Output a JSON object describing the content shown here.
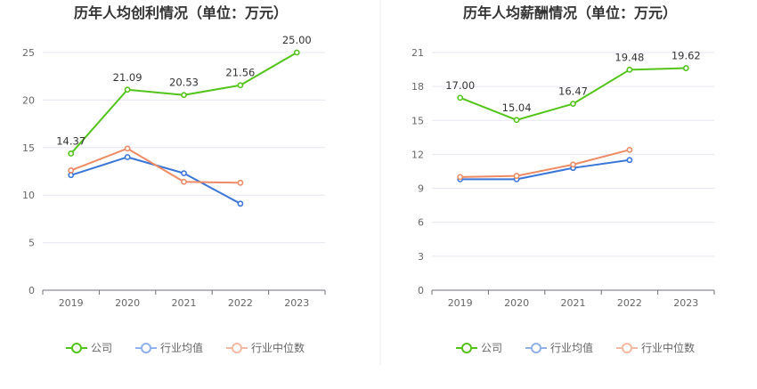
{
  "chart_data": [
    {
      "type": "line",
      "title": "历年人均创利情况（单位：万元）",
      "categories": [
        "2019",
        "2020",
        "2021",
        "2022",
        "2023"
      ],
      "ylim": [
        0,
        25
      ],
      "yticks": [
        0,
        5,
        10,
        15,
        20,
        25
      ],
      "grid": true,
      "legend_position": "bottom",
      "series": [
        {
          "name": "公司",
          "color": "#52c41a",
          "values": [
            14.37,
            21.09,
            20.53,
            21.56,
            25.0
          ],
          "labels": [
            "14.37",
            "21.09",
            "20.53",
            "21.56",
            "25.00"
          ]
        },
        {
          "name": "行业均值",
          "color": "#3a75d8",
          "values": [
            12.1,
            14.0,
            12.3,
            9.1,
            null
          ]
        },
        {
          "name": "行业中位数",
          "color": "#ee8a64",
          "values": [
            12.6,
            14.9,
            11.4,
            11.3,
            null
          ]
        }
      ]
    },
    {
      "type": "line",
      "title": "历年人均薪酬情况（单位：万元）",
      "categories": [
        "2019",
        "2020",
        "2021",
        "2022",
        "2023"
      ],
      "ylim": [
        0,
        21
      ],
      "yticks": [
        0,
        3,
        6,
        9,
        12,
        15,
        18,
        21
      ],
      "grid": true,
      "legend_position": "bottom",
      "series": [
        {
          "name": "公司",
          "color": "#52c41a",
          "values": [
            17.0,
            15.04,
            16.47,
            19.48,
            19.62
          ],
          "labels": [
            "17.00",
            "15.04",
            "16.47",
            "19.48",
            "19.62"
          ]
        },
        {
          "name": "行业均值",
          "color": "#3a75d8",
          "values": [
            9.8,
            9.8,
            10.8,
            11.5,
            null
          ]
        },
        {
          "name": "行业中位数",
          "color": "#ee8a64",
          "values": [
            10.0,
            10.1,
            11.1,
            12.4,
            null
          ]
        }
      ]
    }
  ],
  "legend_colors": {
    "公司": "#52c41a",
    "行业均值": "#8fb0e8",
    "行业中位数": "#f5b9a1"
  }
}
